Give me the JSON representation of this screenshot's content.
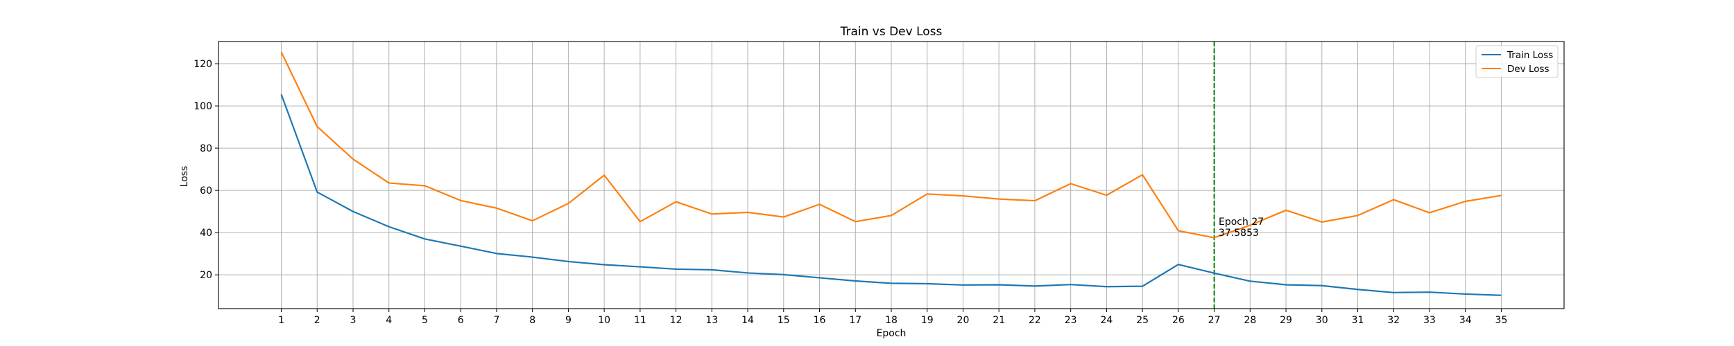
{
  "chart_data": {
    "type": "line",
    "title": "Train vs Dev Loss",
    "xlabel": "Epoch",
    "ylabel": "Loss",
    "xlim": [
      -0.75,
      36.75
    ],
    "ylim": [
      4.0,
      130.5
    ],
    "x": [
      1,
      2,
      3,
      4,
      5,
      6,
      7,
      8,
      9,
      10,
      11,
      12,
      13,
      14,
      15,
      16,
      17,
      18,
      19,
      20,
      21,
      22,
      23,
      24,
      25,
      26,
      27,
      28,
      29,
      30,
      31,
      32,
      33,
      34,
      35
    ],
    "x_tick_labels": [
      "1",
      "2",
      "3",
      "4",
      "5",
      "6",
      "7",
      "8",
      "9",
      "10",
      "11",
      "12",
      "13",
      "14",
      "15",
      "16",
      "17",
      "18",
      "19",
      "20",
      "21",
      "22",
      "23",
      "24",
      "25",
      "26",
      "27",
      "28",
      "29",
      "30",
      "31",
      "32",
      "33",
      "34",
      "35"
    ],
    "y_ticks": [
      20,
      40,
      60,
      80,
      100,
      120
    ],
    "y_tick_labels": [
      "20",
      "40",
      "60",
      "80",
      "100",
      "120"
    ],
    "grid": true,
    "legend_position": "top-right",
    "series": [
      {
        "name": "Train Loss",
        "color": "#1f77b4",
        "values": [
          105.5,
          59.2,
          50.0,
          42.8,
          37.0,
          33.6,
          30.1,
          28.4,
          26.3,
          24.8,
          23.8,
          22.7,
          22.4,
          20.9,
          20.1,
          18.6,
          17.1,
          16.0,
          15.8,
          15.2,
          15.3,
          14.7,
          15.4,
          14.4,
          14.6,
          24.9,
          20.8,
          17.0,
          15.3,
          14.9,
          13.1,
          11.6,
          11.8,
          10.9,
          10.3
        ]
      },
      {
        "name": "Dev Loss",
        "color": "#ff7f0e",
        "values": [
          125.5,
          90.2,
          74.8,
          63.5,
          62.2,
          55.2,
          51.6,
          45.6,
          53.8,
          67.2,
          45.2,
          54.6,
          48.8,
          49.6,
          47.4,
          53.4,
          45.2,
          48.1,
          58.3,
          57.4,
          55.9,
          55.1,
          63.2,
          57.7,
          67.4,
          40.9,
          37.5853,
          43.5,
          50.6,
          45.0,
          48.1,
          55.6,
          49.4,
          54.8,
          57.6
        ]
      }
    ],
    "vline": {
      "x": 27,
      "color": "#008000",
      "style": "dashed"
    },
    "annotation": {
      "x": 27,
      "y": 37.5853,
      "lines": [
        "Epoch 27",
        "37.5853"
      ]
    }
  }
}
